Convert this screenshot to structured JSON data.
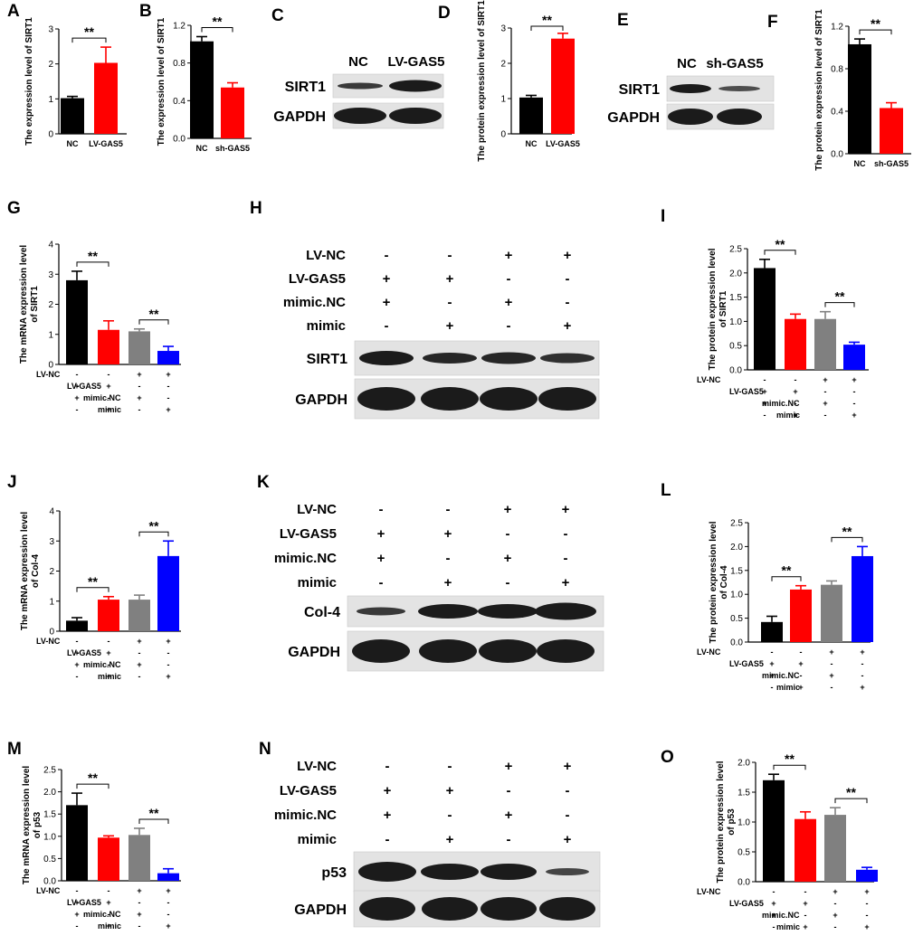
{
  "panel_labels": [
    "A",
    "B",
    "C",
    "D",
    "E",
    "F",
    "G",
    "H",
    "I",
    "J",
    "K",
    "L",
    "M",
    "N",
    "O"
  ],
  "treatments": {
    "rows": [
      "LV-NC",
      "LV-GAS5",
      "mimic.NC",
      "mimic"
    ],
    "signs": [
      [
        "-",
        "-",
        "+",
        "+"
      ],
      [
        "+",
        "+",
        "-",
        "-"
      ],
      [
        "+",
        "-",
        "+",
        "-"
      ],
      [
        "-",
        "+",
        "-",
        "+"
      ]
    ]
  },
  "significance": "**",
  "colors": {
    "black": "#000000",
    "red": "#ff0000",
    "gray": "#808080",
    "blue": "#0000ff"
  },
  "blots": {
    "C": {
      "categories": [
        "NC",
        "LV-GAS5"
      ],
      "bands": [
        "SIRT1",
        "GAPDH"
      ]
    },
    "E": {
      "categories": [
        "NC",
        "sh-GAS5"
      ],
      "bands": [
        "SIRT1",
        "GAPDH"
      ]
    },
    "H": {
      "bands": [
        "SIRT1",
        "GAPDH"
      ]
    },
    "K": {
      "bands": [
        "Col-4",
        "GAPDH"
      ]
    },
    "N": {
      "bands": [
        "p53",
        "GAPDH"
      ]
    }
  },
  "chart_data": [
    {
      "panel": "A",
      "type": "bar",
      "ylabel": "The expression level of SIRT1",
      "categories": [
        "NC",
        "LV-GAS5"
      ],
      "values": [
        1.02,
        2.03
      ],
      "errors": [
        0.05,
        0.45
      ],
      "ylim": [
        0,
        3
      ],
      "yticks": [
        "0",
        "1",
        "2",
        "3"
      ],
      "colors": [
        "#000000",
        "#ff0000"
      ],
      "brackets": [
        [
          0,
          1
        ]
      ]
    },
    {
      "panel": "B",
      "type": "bar",
      "ylabel": "The expression level of SIRT1",
      "categories": [
        "NC",
        "sh-GAS5"
      ],
      "values": [
        1.03,
        0.54
      ],
      "errors": [
        0.05,
        0.05
      ],
      "ylim": [
        0,
        1.2
      ],
      "yticks": [
        "0.0",
        "0.4",
        "0.8",
        "1.2"
      ],
      "colors": [
        "#000000",
        "#ff0000"
      ],
      "brackets": [
        [
          0,
          1
        ]
      ]
    },
    {
      "panel": "D",
      "type": "bar",
      "ylabel": "The protein expression level of SIRT1",
      "categories": [
        "NC",
        "LV-GAS5"
      ],
      "values": [
        1.03,
        2.7
      ],
      "errors": [
        0.06,
        0.15
      ],
      "ylim": [
        0,
        3
      ],
      "yticks": [
        "0",
        "1",
        "2",
        "3"
      ],
      "colors": [
        "#000000",
        "#ff0000"
      ],
      "brackets": [
        [
          0,
          1
        ]
      ]
    },
    {
      "panel": "F",
      "type": "bar",
      "ylabel": "The protein expression level of SIRT1",
      "categories": [
        "NC",
        "sh-GAS5"
      ],
      "values": [
        1.03,
        0.43
      ],
      "errors": [
        0.05,
        0.05
      ],
      "ylim": [
        0,
        1.2
      ],
      "yticks": [
        "0.0",
        "0.4",
        "0.8",
        "1.2"
      ],
      "colors": [
        "#000000",
        "#ff0000"
      ],
      "brackets": [
        [
          0,
          1
        ]
      ]
    },
    {
      "panel": "G",
      "type": "bar",
      "ylabel": "The mRNA expression level of SIRT1",
      "values": [
        2.8,
        1.15,
        1.1,
        0.45
      ],
      "errors": [
        0.3,
        0.3,
        0.08,
        0.15
      ],
      "ylim": [
        0,
        4
      ],
      "yticks": [
        "0",
        "1",
        "2",
        "3",
        "4"
      ],
      "colors": [
        "#000000",
        "#ff0000",
        "#808080",
        "#0000ff"
      ],
      "brackets": [
        [
          0,
          1
        ],
        [
          2,
          3
        ]
      ]
    },
    {
      "panel": "I",
      "type": "bar",
      "ylabel": "The protein expression level of SIRT1",
      "values": [
        2.1,
        1.05,
        1.05,
        0.52
      ],
      "errors": [
        0.18,
        0.1,
        0.15,
        0.05
      ],
      "ylim": [
        0,
        2.5
      ],
      "yticks": [
        "0.0",
        "0.5",
        "1.0",
        "1.5",
        "2.0",
        "2.5"
      ],
      "colors": [
        "#000000",
        "#ff0000",
        "#808080",
        "#0000ff"
      ],
      "brackets": [
        [
          0,
          1
        ],
        [
          2,
          3
        ]
      ]
    },
    {
      "panel": "J",
      "type": "bar",
      "ylabel": "The mRNA expression level of Col-4",
      "values": [
        0.35,
        1.05,
        1.05,
        2.5
      ],
      "errors": [
        0.1,
        0.1,
        0.15,
        0.5
      ],
      "ylim": [
        0,
        4
      ],
      "yticks": [
        "0",
        "1",
        "2",
        "3",
        "4"
      ],
      "colors": [
        "#000000",
        "#ff0000",
        "#808080",
        "#0000ff"
      ],
      "brackets": [
        [
          0,
          1
        ],
        [
          2,
          3
        ]
      ]
    },
    {
      "panel": "L",
      "type": "bar",
      "ylabel": "The protein expression level of Col-4",
      "values": [
        0.42,
        1.1,
        1.2,
        1.8
      ],
      "errors": [
        0.12,
        0.08,
        0.08,
        0.2
      ],
      "ylim": [
        0,
        2.5
      ],
      "yticks": [
        "0.0",
        "0.5",
        "1.0",
        "1.5",
        "2.0",
        "2.5"
      ],
      "colors": [
        "#000000",
        "#ff0000",
        "#808080",
        "#0000ff"
      ],
      "brackets": [
        [
          0,
          1
        ],
        [
          2,
          3
        ]
      ]
    },
    {
      "panel": "M",
      "type": "bar",
      "ylabel": "The mRNA expression level of p53",
      "values": [
        1.7,
        0.97,
        1.03,
        0.17
      ],
      "errors": [
        0.27,
        0.04,
        0.15,
        0.1
      ],
      "ylim": [
        0,
        2.5
      ],
      "yticks": [
        "0.0",
        "0.5",
        "1.0",
        "1.5",
        "2.0",
        "2.5"
      ],
      "colors": [
        "#000000",
        "#ff0000",
        "#808080",
        "#0000ff"
      ],
      "brackets": [
        [
          0,
          1
        ],
        [
          2,
          3
        ]
      ]
    },
    {
      "panel": "O",
      "type": "bar",
      "ylabel": "The protein expression level of p53",
      "values": [
        1.7,
        1.05,
        1.12,
        0.2
      ],
      "errors": [
        0.1,
        0.12,
        0.12,
        0.04
      ],
      "ylim": [
        0,
        2
      ],
      "yticks": [
        "0.0",
        "0.5",
        "1.0",
        "1.5",
        "2.0"
      ],
      "colors": [
        "#000000",
        "#ff0000",
        "#808080",
        "#0000ff"
      ],
      "brackets": [
        [
          0,
          1
        ],
        [
          2,
          3
        ]
      ]
    }
  ]
}
